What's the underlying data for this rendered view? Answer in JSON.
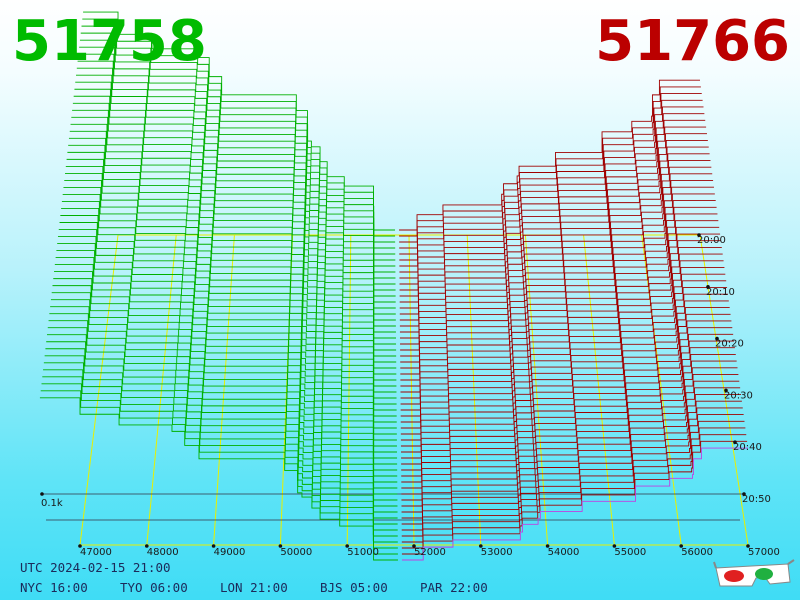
{
  "bid_price": "51758",
  "ask_price": "51766",
  "price_axis": [
    "47000",
    "48000",
    "49000",
    "50000",
    "51000",
    "52000",
    "53000",
    "54000",
    "55000",
    "56000",
    "57000"
  ],
  "time_axis": [
    "20:00",
    "20:10",
    "20:20",
    "20:30",
    "20:40",
    "20:50"
  ],
  "depth_label": "0.1k",
  "timestamp": "UTC 2024-02-15 21:00",
  "clocks": [
    "NYC 16:00",
    "TYO 06:00",
    "LON 21:00",
    "BJS 05:00",
    "PAR 22:00"
  ]
}
